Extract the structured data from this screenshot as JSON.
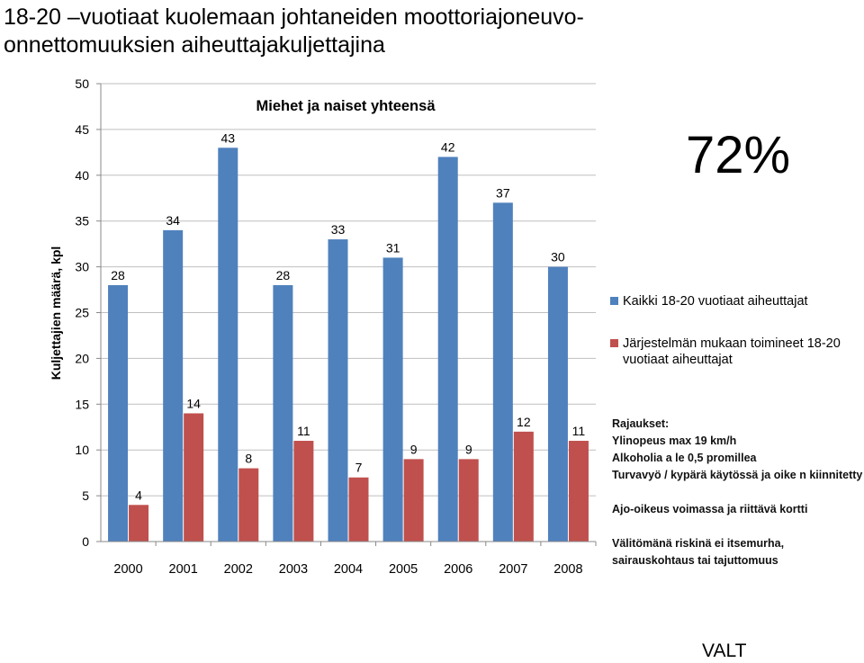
{
  "title": "18-20 –vuotiaat kuolemaan johtaneiden moottoriajoneuvo-\nonnettomuuksien aiheuttajakuljettajina",
  "big_percentage": "72%",
  "source": "VALT",
  "notes": {
    "heading": "Rajaukset:",
    "items": [
      "Ylinopeus max 19 km/h",
      "Alkoholia a le 0,5 promillea",
      "Turvavyö / kypärä käytössä ja oike n kiinnitetty",
      "Ajo-oikeus voimassa ja riittävä kortti",
      "Välitö​mänä riskinä ei itsemurha, sairauskohtaus tai tajuttomuus"
    ]
  },
  "chart_data": {
    "type": "bar",
    "title": "Miehet ja naiset yhteensä",
    "ylabel": "Kuljettajien määrä, kpl",
    "xlabel": "",
    "categories": [
      "2000",
      "2001",
      "2002",
      "2003",
      "2004",
      "2005",
      "2006",
      "2007",
      "2008"
    ],
    "ylim": [
      0,
      50
    ],
    "yticks": [
      0,
      5,
      10,
      15,
      20,
      25,
      30,
      35,
      40,
      45,
      50
    ],
    "grid": true,
    "legend_position": "right",
    "series": [
      {
        "name": "Kaikki 18-20 vuotiaat aiheuttajat",
        "color": "#4F81BD",
        "values": [
          28,
          34,
          43,
          28,
          33,
          31,
          42,
          37,
          30
        ]
      },
      {
        "name": "Järjestelmän mukaan toimineet 18-20 vuotiaat aiheuttajat",
        "color": "#C0504D",
        "values": [
          4,
          14,
          8,
          11,
          7,
          9,
          9,
          12,
          11
        ]
      }
    ]
  }
}
